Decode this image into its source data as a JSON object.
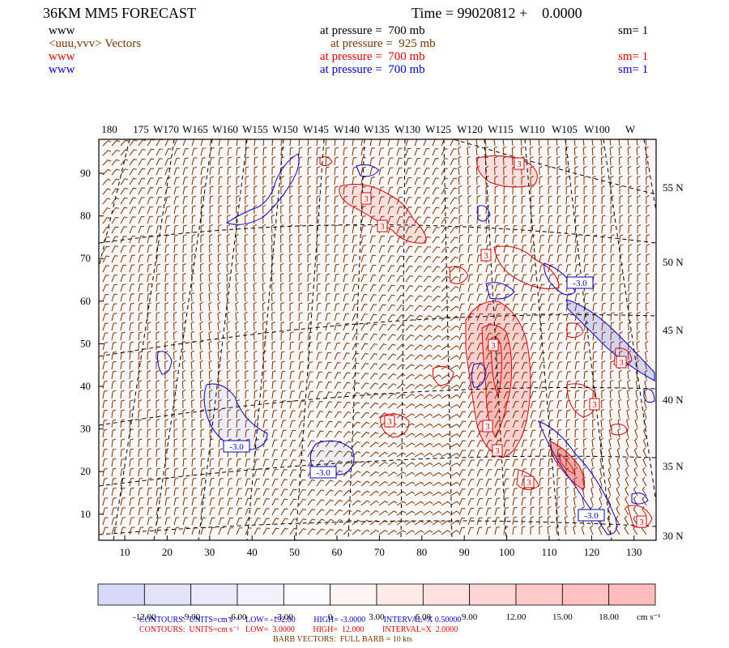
{
  "header": {
    "title": "36KM MM5 FORECAST",
    "time": "Time = 99020812 +    0.0000",
    "rows": [
      {
        "field": "www",
        "pressure": "at pressure =  700 mb",
        "sm": "sm= 1",
        "color": "#000000"
      },
      {
        "field": "<uuu,vvv> Vectors",
        "pressure": "at pressure =  925 mb",
        "sm": "",
        "color": "#7a3300"
      },
      {
        "field": "www",
        "pressure": "at pressure =  700 mb",
        "sm": "sm= 1",
        "color": "#dd0000"
      },
      {
        "field": "www",
        "pressure": "at pressure =  700 mb",
        "sm": "sm= 1",
        "color": "#0000cc"
      }
    ]
  },
  "map": {
    "top_longitudes": [
      "180",
      "175",
      "W170",
      "W165",
      "W160",
      "W155",
      "W150",
      "W145",
      "W140",
      "W135",
      "W130",
      "W125",
      "W120",
      "W115",
      "W110",
      "W105",
      "W100",
      "W"
    ],
    "right_latitudes": [
      "55 N",
      "50 N",
      "45 N",
      "40 N",
      "35 N",
      "30 N"
    ],
    "x_ticks": [
      "10",
      "20",
      "30",
      "40",
      "50",
      "60",
      "70",
      "80",
      "90",
      "100",
      "110",
      "120",
      "130"
    ],
    "y_ticks": [
      "90",
      "80",
      "70",
      "60",
      "50",
      "40",
      "30",
      "20",
      "10"
    ],
    "contour_labels_red": [
      "3",
      "3",
      "3",
      "3",
      "3",
      "3",
      "3",
      "3",
      "3",
      "3",
      "3",
      "3"
    ],
    "contour_labels_blue": [
      "-3.0",
      "-3.0",
      "-3.0",
      "-3.0"
    ]
  },
  "colorbar": {
    "labels": [
      "-12.00",
      "-9.00",
      "-6.00",
      "-3.00",
      "0",
      "3.00",
      "6.00",
      "9.00",
      "12.00",
      "15.00",
      "18.00"
    ],
    "units": "cm s⁻¹",
    "colors": [
      "#d8d8f8",
      "#e2e2f8",
      "#eaeafa",
      "#f2f2fc",
      "#fbfaff",
      "#fff4f4",
      "#ffeaea",
      "#ffe0e0",
      "#ffd4d4",
      "#ffcaca",
      "#ffc0c0",
      "#ffbcbc"
    ]
  },
  "footer": {
    "blue_line": "CONTOURS:  UNITS=cm s⁻¹   LOW= -192.00         HIGH= -3.0000         INTERVAL=X 0.50000",
    "red_line": "CONTOURS:  UNITS=cm s⁻¹   LOW=  3.0000         HIGH=  12.000         INTERVAL=X  2.0000",
    "barb_line": "BARB VECTORS:  FULL BARB = 10 kts"
  }
}
